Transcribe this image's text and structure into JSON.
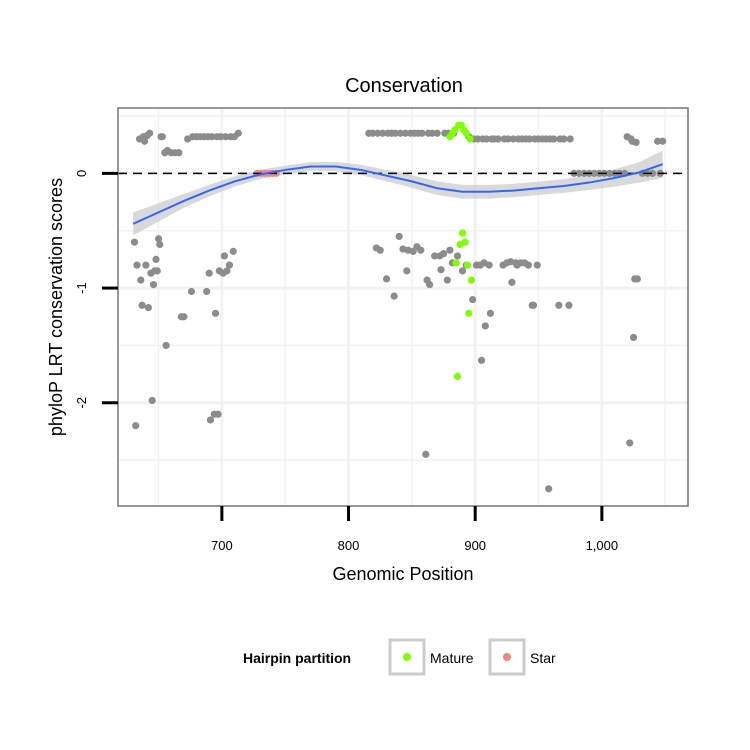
{
  "chart_data": {
    "type": "scatter",
    "title": "Conservation",
    "xlabel": "Genomic Position",
    "ylabel": "phyloP LRT conservation scores",
    "xlim": [
      618,
      1068
    ],
    "ylim": [
      -2.9,
      0.57
    ],
    "x_ticks": [
      700,
      800,
      900,
      1000
    ],
    "x_tick_labels": [
      "700",
      "800",
      "900",
      "1,000"
    ],
    "y_ticks": [
      -2,
      -1,
      0
    ],
    "y_tick_labels": [
      "-2",
      "-1",
      "0"
    ],
    "grid": true,
    "reference_line": {
      "y": 0,
      "style": "dashed"
    },
    "colors": {
      "other": "#8c8c8c",
      "Mature": "#7fff00",
      "Star": "#f4877c",
      "smooth": "#3366ff",
      "ribbon": "#cccccc",
      "panel_border": "#7f7f7f",
      "grid": "#f2f2f2"
    },
    "series": [
      {
        "key": "other",
        "points": [
          [
            631,
            -0.6
          ],
          [
            632,
            -2.2
          ],
          [
            633,
            -0.8
          ],
          [
            635,
            0.3
          ],
          [
            636,
            -0.93
          ],
          [
            637,
            -1.15
          ],
          [
            638,
            0.32
          ],
          [
            639,
            0.28
          ],
          [
            640,
            -0.8
          ],
          [
            641,
            0.33
          ],
          [
            642,
            -1.17
          ],
          [
            643,
            0.35
          ],
          [
            644,
            -0.87
          ],
          [
            645,
            -1.98
          ],
          [
            646,
            -0.97
          ],
          [
            647,
            -0.85
          ],
          [
            648,
            -0.75
          ],
          [
            649,
            -0.85
          ],
          [
            650,
            -0.57
          ],
          [
            651,
            -0.62
          ],
          [
            652,
            0.32
          ],
          [
            653,
            0.32
          ],
          [
            655,
            0.18
          ],
          [
            656,
            -1.5
          ],
          [
            657,
            0.2
          ],
          [
            660,
            0.18
          ],
          [
            663,
            0.18
          ],
          [
            666,
            0.18
          ],
          [
            668,
            -1.25
          ],
          [
            670,
            -1.25
          ],
          [
            673,
            0.3
          ],
          [
            676,
            -1.03
          ],
          [
            677,
            0.32
          ],
          [
            680,
            0.32
          ],
          [
            683,
            0.32
          ],
          [
            686,
            0.32
          ],
          [
            688,
            -1.03
          ],
          [
            689,
            0.32
          ],
          [
            690,
            -0.87
          ],
          [
            691,
            -2.15
          ],
          [
            692,
            0.32
          ],
          [
            694,
            -2.1
          ],
          [
            695,
            -1.22
          ],
          [
            696,
            0.32
          ],
          [
            697,
            -2.1
          ],
          [
            698,
            -0.85
          ],
          [
            699,
            0.32
          ],
          [
            701,
            -0.87
          ],
          [
            702,
            -0.72
          ],
          [
            703,
            0.32
          ],
          [
            704,
            -0.85
          ],
          [
            706,
            -0.8
          ],
          [
            707,
            0.32
          ],
          [
            709,
            -0.68
          ],
          [
            710,
            0.32
          ],
          [
            713,
            0.35
          ],
          [
            816,
            0.35
          ],
          [
            819,
            0.35
          ],
          [
            822,
            -0.65
          ],
          [
            823,
            0.35
          ],
          [
            825,
            -0.67
          ],
          [
            827,
            0.35
          ],
          [
            830,
            -0.92
          ],
          [
            831,
            0.35
          ],
          [
            834,
            0.35
          ],
          [
            836,
            -1.07
          ],
          [
            837,
            0.35
          ],
          [
            840,
            -0.55
          ],
          [
            841,
            0.35
          ],
          [
            843,
            -0.66
          ],
          [
            845,
            0.35
          ],
          [
            846,
            -0.85
          ],
          [
            847,
            -0.67
          ],
          [
            849,
            0.35
          ],
          [
            851,
            -0.68
          ],
          [
            852,
            0.35
          ],
          [
            854,
            -0.64
          ],
          [
            855,
            0.35
          ],
          [
            857,
            -0.67
          ],
          [
            858,
            0.35
          ],
          [
            861,
            -2.45
          ],
          [
            862,
            -0.93
          ],
          [
            863,
            0.35
          ],
          [
            864,
            -0.97
          ],
          [
            866,
            0.35
          ],
          [
            868,
            -0.72
          ],
          [
            870,
            0.35
          ],
          [
            872,
            -0.72
          ],
          [
            873,
            -0.84
          ],
          [
            875,
            -0.7
          ],
          [
            876,
            0.35
          ],
          [
            878,
            -0.93
          ],
          [
            879,
            0.35
          ],
          [
            880,
            -0.67
          ],
          [
            882,
            -0.78
          ],
          [
            883,
            0.35
          ],
          [
            886,
            -0.72
          ],
          [
            890,
            -0.85
          ],
          [
            893,
            -0.8
          ],
          [
            895,
            0.32
          ],
          [
            898,
            -1.1
          ],
          [
            899,
            0.3
          ],
          [
            901,
            -0.8
          ],
          [
            902,
            0.3
          ],
          [
            904,
            -0.8
          ],
          [
            905,
            -1.63
          ],
          [
            906,
            0.3
          ],
          [
            907,
            -0.78
          ],
          [
            908,
            -1.33
          ],
          [
            909,
            0.3
          ],
          [
            911,
            -0.8
          ],
          [
            912,
            -1.22
          ],
          [
            913,
            0.3
          ],
          [
            915,
            0.3
          ],
          [
            918,
            0.3
          ],
          [
            922,
            -0.8
          ],
          [
            923,
            0.3
          ],
          [
            925,
            -0.78
          ],
          [
            926,
            0.3
          ],
          [
            928,
            -0.77
          ],
          [
            929,
            -0.95
          ],
          [
            930,
            0.3
          ],
          [
            932,
            -0.78
          ],
          [
            933,
            -0.8
          ],
          [
            934,
            0.3
          ],
          [
            936,
            -0.78
          ],
          [
            937,
            0.3
          ],
          [
            939,
            -0.78
          ],
          [
            940,
            0.3
          ],
          [
            942,
            -0.8
          ],
          [
            943,
            0.3
          ],
          [
            945,
            -1.15
          ],
          [
            946,
            -1.15
          ],
          [
            947,
            0.3
          ],
          [
            949,
            -0.8
          ],
          [
            950,
            0.3
          ],
          [
            953,
            0.3
          ],
          [
            956,
            0.3
          ],
          [
            958,
            -2.75
          ],
          [
            959,
            0.3
          ],
          [
            962,
            0.3
          ],
          [
            966,
            -1.15
          ],
          [
            967,
            0.3
          ],
          [
            970,
            0.3
          ],
          [
            974,
            -1.15
          ],
          [
            975,
            0.3
          ],
          [
            978,
            0.0
          ],
          [
            982,
            0.0
          ],
          [
            986,
            0.0
          ],
          [
            990,
            0.0
          ],
          [
            994,
            0.0
          ],
          [
            998,
            0.0
          ],
          [
            1002,
            0.0
          ],
          [
            1006,
            0.0
          ],
          [
            1010,
            0.0
          ],
          [
            1014,
            0.0
          ],
          [
            1018,
            0.0
          ],
          [
            1020,
            0.32
          ],
          [
            1022,
            -2.35
          ],
          [
            1023,
            0.3
          ],
          [
            1024,
            0.28
          ],
          [
            1025,
            -1.43
          ],
          [
            1026,
            -0.92
          ],
          [
            1027,
            0.27
          ],
          [
            1028,
            -0.92
          ],
          [
            1032,
            0.0
          ],
          [
            1036,
            0.0
          ],
          [
            1040,
            0.0
          ],
          [
            1044,
            0.28
          ],
          [
            1046,
            0.0
          ],
          [
            1048,
            0.28
          ]
        ]
      },
      {
        "key": "Mature",
        "name": "Mature",
        "points": [
          [
            880,
            0.32
          ],
          [
            882,
            0.35
          ],
          [
            884,
            0.38
          ],
          [
            885,
            -0.78
          ],
          [
            886,
            -1.77
          ],
          [
            887,
            0.42
          ],
          [
            888,
            -0.62
          ],
          [
            889,
            0.42
          ],
          [
            890,
            -0.52
          ],
          [
            891,
            0.38
          ],
          [
            892,
            -0.6
          ],
          [
            893,
            0.35
          ],
          [
            894,
            -0.8
          ],
          [
            895,
            -1.22
          ],
          [
            896,
            0.3
          ],
          [
            897,
            -0.93
          ]
        ]
      },
      {
        "key": "Star",
        "name": "Star",
        "points": [
          [
            728,
            0.0
          ],
          [
            731,
            0.0
          ],
          [
            734,
            0.0
          ],
          [
            737,
            0.0
          ],
          [
            740,
            0.0
          ],
          [
            743,
            0.0
          ]
        ]
      }
    ],
    "smooth": {
      "x": [
        630,
        650,
        670,
        690,
        710,
        730,
        750,
        770,
        790,
        810,
        830,
        850,
        870,
        890,
        910,
        930,
        950,
        970,
        990,
        1010,
        1030,
        1048
      ],
      "y": [
        -0.44,
        -0.34,
        -0.24,
        -0.15,
        -0.07,
        -0.01,
        0.03,
        0.06,
        0.06,
        0.03,
        -0.02,
        -0.07,
        -0.13,
        -0.16,
        -0.16,
        -0.15,
        -0.13,
        -0.11,
        -0.08,
        -0.04,
        0.01,
        0.08
      ],
      "se": [
        0.1,
        0.08,
        0.06,
        0.05,
        0.045,
        0.04,
        0.038,
        0.038,
        0.04,
        0.045,
        0.05,
        0.055,
        0.06,
        0.06,
        0.06,
        0.058,
        0.058,
        0.06,
        0.065,
        0.075,
        0.09,
        0.12
      ]
    },
    "legend": {
      "title": "Hairpin partition",
      "position": "bottom",
      "entries": [
        {
          "label": "Mature",
          "color": "#7fff00"
        },
        {
          "label": "Star",
          "color": "#f4877c"
        }
      ]
    }
  }
}
